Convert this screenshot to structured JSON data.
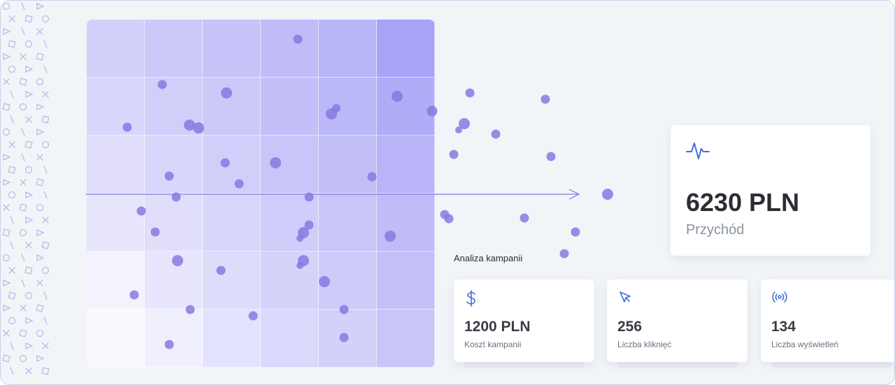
{
  "revenue": {
    "value": "6230 PLN",
    "label": "Przychód",
    "icon": "pulse-icon"
  },
  "campaign": {
    "title": "Analiza kampanii",
    "stats": [
      {
        "value": "1200 PLN",
        "label": "Koszt kampanii",
        "icon": "dollar-icon"
      },
      {
        "value": "256",
        "label": "Liczba kliknięć",
        "icon": "cursor-icon"
      },
      {
        "value": "134",
        "label": "Liczba wyświetleń",
        "icon": "broadcast-icon"
      }
    ]
  },
  "colors": {
    "accent": "#3f6fd8",
    "dot": "#8a78e0",
    "heat_light": "#fbfbfe",
    "heat_dark": "#a09bf5"
  },
  "heatmap": {
    "rows": 6,
    "cols": 6,
    "levels": [
      [
        0.45,
        0.52,
        0.58,
        0.66,
        0.72,
        0.92
      ],
      [
        0.38,
        0.46,
        0.52,
        0.62,
        0.7,
        0.82
      ],
      [
        0.3,
        0.38,
        0.46,
        0.56,
        0.64,
        0.74
      ],
      [
        0.22,
        0.3,
        0.38,
        0.48,
        0.56,
        0.66
      ],
      [
        0.08,
        0.22,
        0.32,
        0.42,
        0.5,
        0.6
      ],
      [
        0.02,
        0.12,
        0.26,
        0.36,
        0.44,
        0.56
      ]
    ]
  }
}
